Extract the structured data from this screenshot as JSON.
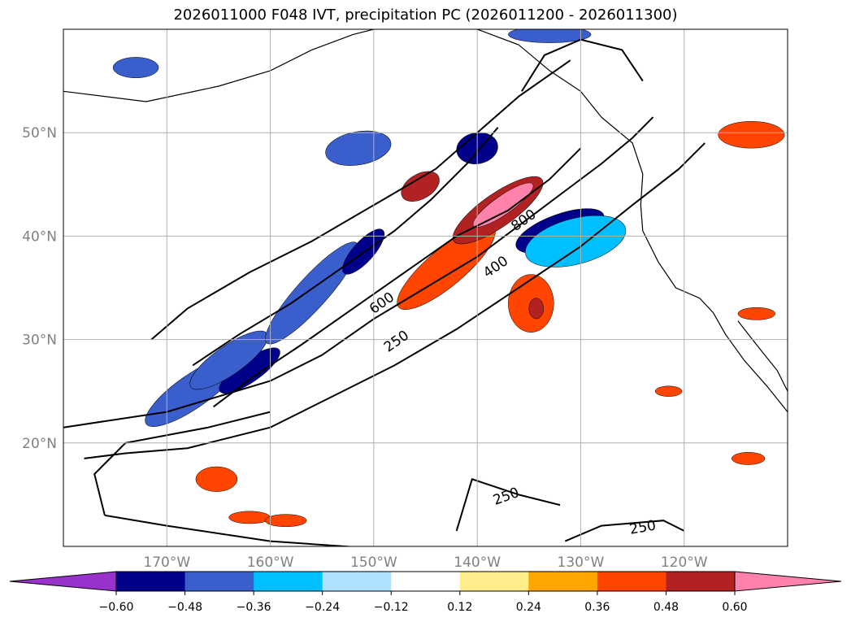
{
  "title": "2026011000 F048 IVT, precipitation PC (2026011200 - 2026011300)",
  "chart_data": {
    "type": "heatmap",
    "title": "2026011000 F048 IVT, precipitation PC (2026011200 - 2026011300)",
    "map": {
      "lon_range": [
        -180,
        -110
      ],
      "lat_range": [
        10,
        60
      ],
      "lon_ticks": [
        -170,
        -160,
        -150,
        -140,
        -130,
        -120
      ],
      "lon_tick_labels": [
        "170°W",
        "160°W",
        "150°W",
        "140°W",
        "130°W",
        "120°W"
      ],
      "lat_ticks": [
        20,
        30,
        40,
        50
      ],
      "lat_tick_labels": [
        "20°N",
        "30°N",
        "40°N",
        "50°N"
      ],
      "grid": true
    },
    "colorbar": {
      "orientation": "horizontal",
      "location": "bottom",
      "extend": "both",
      "levels": [
        -0.6,
        -0.48,
        -0.36,
        -0.24,
        -0.12,
        0.12,
        0.24,
        0.36,
        0.48,
        0.6
      ],
      "tick_labels": [
        "−0.60",
        "−0.48",
        "−0.36",
        "−0.24",
        "−0.12",
        "0.12",
        "0.24",
        "0.36",
        "0.48",
        "0.60"
      ],
      "colors": [
        "#9932cc",
        "#00008b",
        "#3a5fcd",
        "#00bfff",
        "#b0e2ff",
        "#ffffff",
        "#ffec8b",
        "#ffa500",
        "#ff4500",
        "#b22222",
        "#ff82ab"
      ]
    },
    "ivt_contour_levels": [
      250,
      400,
      600,
      800
    ],
    "ivt_contour_labels": [
      {
        "text": "800",
        "lon": -135.5,
        "lat": 41.5,
        "angle": -35
      },
      {
        "text": "400",
        "lon": -138.2,
        "lat": 37.0,
        "angle": -35
      },
      {
        "text": "600",
        "lon": -149.2,
        "lat": 33.5,
        "angle": -35
      },
      {
        "text": "250",
        "lon": -147.8,
        "lat": 29.8,
        "angle": -35
      },
      {
        "text": "250",
        "lon": -137.2,
        "lat": 14.8,
        "angle": -20
      },
      {
        "text": "250",
        "lon": -124.0,
        "lat": 11.8,
        "angle": -10
      }
    ],
    "ivt_contours": [
      [
        [
          -180,
          21.5
        ],
        [
          -170,
          23
        ],
        [
          -160,
          26
        ],
        [
          -155,
          28.5
        ],
        [
          -150,
          32
        ],
        [
          -145,
          35
        ],
        [
          -140,
          38
        ],
        [
          -136,
          41
        ],
        [
          -132,
          44
        ],
        [
          -128,
          47
        ],
        [
          -125,
          49.5
        ],
        [
          -123,
          51.5
        ]
      ],
      [
        [
          -171.5,
          30
        ],
        [
          -168,
          33
        ],
        [
          -162,
          36.5
        ],
        [
          -156,
          39.5
        ],
        [
          -150,
          43
        ],
        [
          -144,
          46.5
        ],
        [
          -140,
          50
        ],
        [
          -136,
          53.5
        ],
        [
          -131,
          57
        ]
      ],
      [
        [
          -178,
          18.5
        ],
        [
          -174,
          19
        ],
        [
          -168,
          19.5
        ],
        [
          -160,
          21.5
        ],
        [
          -154,
          24.5
        ],
        [
          -148,
          27.5
        ],
        [
          -142,
          31
        ],
        [
          -136,
          35
        ],
        [
          -130,
          39
        ],
        [
          -125,
          43
        ],
        [
          -120.5,
          46.5
        ],
        [
          -118,
          49
        ]
      ],
      [
        [
          -135.7,
          54
        ],
        [
          -133.5,
          57.5
        ],
        [
          -130,
          59
        ],
        [
          -126,
          58
        ],
        [
          -124,
          55
        ]
      ],
      [
        [
          -176,
          13
        ],
        [
          -177,
          17
        ],
        [
          -174,
          20
        ],
        [
          -166,
          21.5
        ],
        [
          -160,
          23
        ]
      ],
      [
        [
          -176,
          13
        ],
        [
          -170,
          12
        ],
        [
          -160,
          10.5
        ],
        [
          -150,
          9.8
        ]
      ],
      [
        [
          -142,
          11.5
        ],
        [
          -140.5,
          16.5
        ],
        [
          -136,
          15
        ],
        [
          -132,
          14
        ]
      ],
      [
        [
          -131.5,
          10.5
        ],
        [
          -128,
          12
        ],
        [
          -122,
          12.5
        ],
        [
          -120,
          11.5
        ]
      ],
      [
        [
          -167.5,
          27.5
        ],
        [
          -163,
          30.5
        ],
        [
          -158,
          33.5
        ],
        [
          -153,
          37
        ],
        [
          -148,
          40.5
        ],
        [
          -144.5,
          43.5
        ],
        [
          -141,
          47
        ],
        [
          -138,
          50.5
        ]
      ],
      [
        [
          -165.5,
          23.5
        ],
        [
          -161.5,
          26.5
        ],
        [
          -157,
          29.5
        ],
        [
          -152,
          33
        ],
        [
          -147,
          36.5
        ],
        [
          -142,
          40
        ],
        [
          -137,
          42.5
        ],
        [
          -133,
          45.5
        ],
        [
          -130,
          48.5
        ]
      ]
    ],
    "pc_regions": [
      {
        "level": -0.36,
        "lon": -167.5,
        "lat": 25.0,
        "rlon": 5.5,
        "rlat": 1.6,
        "angle": -35
      },
      {
        "level": -0.48,
        "lon": -162.0,
        "lat": 27.0,
        "rlon": 3.5,
        "rlat": 1.1,
        "angle": -35
      },
      {
        "level": -0.36,
        "lon": -164.0,
        "lat": 28.0,
        "rlon": 4.5,
        "rlat": 1.4,
        "angle": -35
      },
      {
        "level": -0.36,
        "lon": -156.0,
        "lat": 34.5,
        "rlon": 6.5,
        "rlat": 1.5,
        "angle": -48
      },
      {
        "level": -0.48,
        "lon": -151.0,
        "lat": 38.5,
        "rlon": 2.8,
        "rlat": 1.0,
        "angle": -48
      },
      {
        "level": -0.36,
        "lon": -151.5,
        "lat": 48.5,
        "rlon": 3.2,
        "rlat": 1.6,
        "angle": -10
      },
      {
        "level": -0.48,
        "lon": -140.0,
        "lat": 48.5,
        "rlon": 2.0,
        "rlat": 1.5,
        "angle": -10
      },
      {
        "level": -0.48,
        "lon": -132.0,
        "lat": 40.5,
        "rlon": 4.5,
        "rlat": 1.6,
        "angle": -20
      },
      {
        "level": -0.24,
        "lon": -130.5,
        "lat": 39.5,
        "rlon": 5.0,
        "rlat": 2.2,
        "angle": -15
      },
      {
        "level": -0.36,
        "lon": -173.0,
        "lat": 56.3,
        "rlon": 2.2,
        "rlat": 1.0,
        "angle": 0
      },
      {
        "level": -0.36,
        "lon": -133.0,
        "lat": 59.5,
        "rlon": 4.0,
        "rlat": 0.8,
        "angle": 0
      },
      {
        "level": 0.36,
        "lon": -143.0,
        "lat": 37.0,
        "rlon": 6.0,
        "rlat": 1.8,
        "angle": -40
      },
      {
        "level": 0.48,
        "lon": -138.0,
        "lat": 42.5,
        "rlon": 5.2,
        "rlat": 1.6,
        "angle": -35
      },
      {
        "level": 0.6,
        "lon": -137.5,
        "lat": 43.0,
        "rlon": 3.5,
        "rlat": 0.9,
        "angle": -35
      },
      {
        "level": 0.48,
        "lon": -145.5,
        "lat": 44.8,
        "rlon": 2.0,
        "rlat": 1.2,
        "angle": -30
      },
      {
        "level": 0.36,
        "lon": -134.8,
        "lat": 33.5,
        "rlon": 2.2,
        "rlat": 2.8,
        "angle": 0
      },
      {
        "level": 0.48,
        "lon": -134.3,
        "lat": 33.0,
        "rlon": 0.7,
        "rlat": 1.0,
        "angle": 0
      },
      {
        "level": 0.36,
        "lon": -113.5,
        "lat": 49.8,
        "rlon": 3.2,
        "rlat": 1.3,
        "angle": 0
      },
      {
        "level": 0.36,
        "lon": -165.2,
        "lat": 16.5,
        "rlon": 2.0,
        "rlat": 1.2,
        "angle": 0
      },
      {
        "level": 0.36,
        "lon": -162.0,
        "lat": 12.8,
        "rlon": 2.0,
        "rlat": 0.6,
        "angle": 0
      },
      {
        "level": 0.36,
        "lon": -158.5,
        "lat": 12.5,
        "rlon": 2.0,
        "rlat": 0.6,
        "angle": 0
      },
      {
        "level": 0.36,
        "lon": -121.5,
        "lat": 25.0,
        "rlon": 1.3,
        "rlat": 0.5,
        "angle": 0
      },
      {
        "level": 0.36,
        "lon": -113.0,
        "lat": 32.5,
        "rlon": 1.8,
        "rlat": 0.6,
        "angle": 0
      },
      {
        "level": 0.36,
        "lon": -113.8,
        "lat": 18.5,
        "rlon": 1.6,
        "rlat": 0.6,
        "angle": 0
      }
    ]
  }
}
